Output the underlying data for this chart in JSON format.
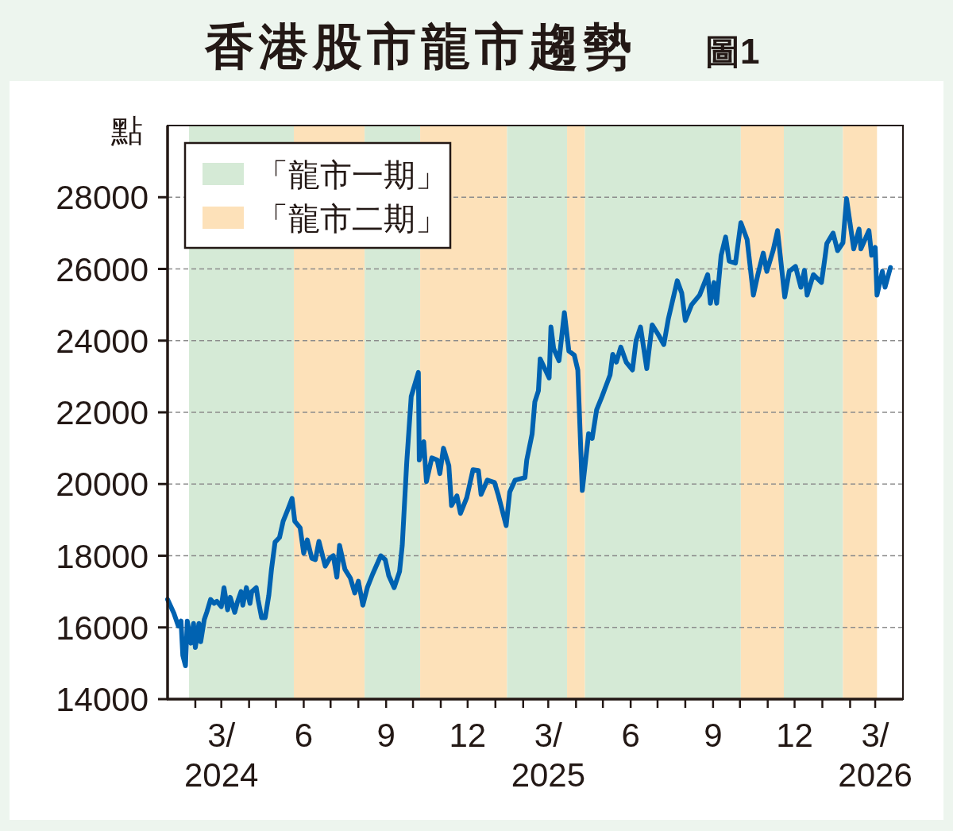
{
  "chart_data": {
    "type": "line",
    "title": "香港股市龍市趨勢",
    "subtitle": "圖1",
    "ylabel": "點",
    "xlim": [
      "2024-01-01",
      "2026-04-01"
    ],
    "ylim": [
      14000,
      30000
    ],
    "yticks": [
      14000,
      16000,
      18000,
      20000,
      22000,
      24000,
      26000,
      28000
    ],
    "xticks": [
      {
        "value": "2024-02-01",
        "label": null
      },
      {
        "value": "2024-03-01",
        "label": "3/\n2024"
      },
      {
        "value": "2024-04-01",
        "label": null
      },
      {
        "value": "2024-05-01",
        "label": null
      },
      {
        "value": "2024-06-01",
        "label": "6"
      },
      {
        "value": "2024-07-01",
        "label": null
      },
      {
        "value": "2024-08-01",
        "label": null
      },
      {
        "value": "2024-09-01",
        "label": "9"
      },
      {
        "value": "2024-10-01",
        "label": null
      },
      {
        "value": "2024-11-01",
        "label": null
      },
      {
        "value": "2024-12-01",
        "label": "12"
      },
      {
        "value": "2025-01-01",
        "label": null
      },
      {
        "value": "2025-02-01",
        "label": null
      },
      {
        "value": "2025-03-01",
        "label": "3/\n2025"
      },
      {
        "value": "2025-04-01",
        "label": null
      },
      {
        "value": "2025-05-01",
        "label": null
      },
      {
        "value": "2025-06-01",
        "label": "6"
      },
      {
        "value": "2025-07-01",
        "label": null
      },
      {
        "value": "2025-08-01",
        "label": null
      },
      {
        "value": "2025-09-01",
        "label": "9"
      },
      {
        "value": "2025-10-01",
        "label": null
      },
      {
        "value": "2025-11-01",
        "label": null
      },
      {
        "value": "2025-12-01",
        "label": "12"
      },
      {
        "value": "2026-01-01",
        "label": null
      },
      {
        "value": "2026-02-01",
        "label": null
      },
      {
        "value": "2026-03-01",
        "label": "3/\n2026"
      }
    ],
    "grid": "y",
    "legend": "top left",
    "bands": [
      {
        "axis": "x",
        "from": "2024-01-25",
        "to": "2024-05-21",
        "label": "「龍市一期」",
        "color": "#d5ead6"
      },
      {
        "axis": "x",
        "from": "2024-05-21",
        "to": "2024-08-08",
        "label": "「龍市二期」",
        "color": "#fde1b9"
      },
      {
        "axis": "x",
        "from": "2024-08-08",
        "to": "2024-10-09",
        "color": "#d5ead6"
      },
      {
        "axis": "x",
        "from": "2024-10-09",
        "to": "2025-01-14",
        "color": "#fde1b9"
      },
      {
        "axis": "x",
        "from": "2025-01-14",
        "to": "2025-03-22",
        "color": "#d5ead6"
      },
      {
        "axis": "x",
        "from": "2025-03-22",
        "to": "2025-04-11",
        "color": "#fde1b9"
      },
      {
        "axis": "x",
        "from": "2025-04-11",
        "to": "2025-10-02",
        "color": "#d5ead6"
      },
      {
        "axis": "x",
        "from": "2025-10-02",
        "to": "2025-11-19",
        "color": "#fde1b9"
      },
      {
        "axis": "x",
        "from": "2025-11-19",
        "to": "2026-01-24",
        "color": "#d5ead6"
      },
      {
        "axis": "x",
        "from": "2026-01-24",
        "to": "2026-03-03",
        "color": "#fde1b9"
      }
    ],
    "series": [
      {
        "color": "#0062b1",
        "x": [
          "2024-01-01",
          "2024-01-08",
          "2024-01-13",
          "2024-01-16",
          "2024-01-18",
          "2024-01-21",
          "2024-01-23",
          "2024-01-27",
          "2024-01-30",
          "2024-02-01",
          "2024-02-05",
          "2024-02-07",
          "2024-02-11",
          "2024-02-14",
          "2024-02-18",
          "2024-02-22",
          "2024-02-25",
          "2024-03-01",
          "2024-03-04",
          "2024-03-08",
          "2024-03-11",
          "2024-03-16",
          "2024-03-19",
          "2024-03-23",
          "2024-03-25",
          "2024-03-29",
          "2024-04-02",
          "2024-04-04",
          "2024-04-09",
          "2024-04-11",
          "2024-04-15",
          "2024-04-19",
          "2024-04-23",
          "2024-04-26",
          "2024-04-30",
          "2024-05-05",
          "2024-05-09",
          "2024-05-14",
          "2024-05-19",
          "2024-05-22",
          "2024-05-28",
          "2024-06-01",
          "2024-06-05",
          "2024-06-10",
          "2024-06-14",
          "2024-06-18",
          "2024-06-25",
          "2024-06-30",
          "2024-07-04",
          "2024-07-08",
          "2024-07-11",
          "2024-07-17",
          "2024-07-23",
          "2024-07-28",
          "2024-08-01",
          "2024-08-06",
          "2024-08-11",
          "2024-08-17",
          "2024-08-26",
          "2024-08-31",
          "2024-09-04",
          "2024-09-10",
          "2024-09-16",
          "2024-09-19",
          "2024-09-24",
          "2024-09-29",
          "2024-10-07",
          "2024-10-08",
          "2024-10-13",
          "2024-10-16",
          "2024-10-22",
          "2024-10-28",
          "2024-10-31",
          "2024-11-04",
          "2024-11-10",
          "2024-11-13",
          "2024-11-19",
          "2024-11-23",
          "2024-11-30",
          "2024-12-07",
          "2024-12-13",
          "2024-12-16",
          "2024-12-23",
          "2024-12-31",
          "2025-01-04",
          "2025-01-13",
          "2025-01-17",
          "2025-01-23",
          "2025-02-03",
          "2025-02-05",
          "2025-02-11",
          "2025-02-14",
          "2025-02-18",
          "2025-02-20",
          "2025-03-02",
          "2025-03-04",
          "2025-03-07",
          "2025-03-13",
          "2025-03-19",
          "2025-03-24",
          "2025-03-30",
          "2025-04-03",
          "2025-04-08",
          "2025-04-15",
          "2025-04-19",
          "2025-04-24",
          "2025-04-30",
          "2025-05-09",
          "2025-05-12",
          "2025-05-16",
          "2025-05-21",
          "2025-05-27",
          "2025-06-03",
          "2025-06-07",
          "2025-06-12",
          "2025-06-19",
          "2025-06-25",
          "2025-07-02",
          "2025-07-08",
          "2025-07-13",
          "2025-07-23",
          "2025-07-28",
          "2025-08-01",
          "2025-08-08",
          "2025-08-17",
          "2025-08-26",
          "2025-08-29",
          "2025-09-02",
          "2025-09-05",
          "2025-09-10",
          "2025-09-15",
          "2025-09-19",
          "2025-09-26",
          "2025-10-02",
          "2025-10-09",
          "2025-10-16",
          "2025-10-21",
          "2025-10-27",
          "2025-10-31",
          "2025-11-07",
          "2025-11-12",
          "2025-11-20",
          "2025-11-25",
          "2025-12-02",
          "2025-12-08",
          "2025-12-12",
          "2025-12-15",
          "2025-12-22",
          "2025-12-31",
          "2026-01-04",
          "2026-01-06",
          "2026-01-13",
          "2026-01-18",
          "2026-01-24",
          "2026-01-28",
          "2026-02-05",
          "2026-02-11",
          "2026-02-13",
          "2026-02-22",
          "2026-02-25",
          "2026-03-01",
          "2026-03-03",
          "2026-03-09",
          "2026-03-12",
          "2026-03-18"
        ],
        "values": [
          16780,
          16400,
          16040,
          16180,
          15220,
          14930,
          16180,
          15560,
          16110,
          15440,
          16110,
          15600,
          16220,
          16440,
          16780,
          16670,
          16730,
          16580,
          17110,
          16490,
          16840,
          16420,
          16710,
          17000,
          16620,
          17110,
          16670,
          17000,
          17110,
          16780,
          16270,
          16270,
          16890,
          17620,
          18380,
          18510,
          18960,
          19270,
          19600,
          18960,
          18780,
          18070,
          18440,
          17930,
          17890,
          18400,
          17710,
          17930,
          18000,
          17400,
          18290,
          17620,
          17380,
          16960,
          17290,
          16620,
          17110,
          17490,
          18000,
          17890,
          17440,
          17110,
          17560,
          18290,
          20600,
          22440,
          23110,
          20670,
          21180,
          20070,
          20730,
          20670,
          20290,
          21000,
          20510,
          19400,
          19670,
          19180,
          19620,
          20400,
          20380,
          19710,
          20110,
          20040,
          19710,
          18840,
          19780,
          20110,
          20180,
          20670,
          21400,
          22290,
          22600,
          23490,
          22960,
          24380,
          23780,
          23440,
          24780,
          23710,
          23600,
          23180,
          19820,
          21400,
          21270,
          22070,
          22440,
          23040,
          23620,
          23400,
          23820,
          23400,
          23180,
          24000,
          24380,
          23220,
          24440,
          24160,
          23890,
          24600,
          25670,
          25330,
          24560,
          25000,
          25270,
          25840,
          25040,
          25620,
          25040,
          26380,
          26890,
          26220,
          26160,
          27290,
          26820,
          25270,
          25840,
          26440,
          25930,
          26510,
          27070,
          25220,
          25930,
          26070,
          25490,
          25960,
          25270,
          25840,
          25620,
          26330,
          26710,
          27000,
          26510,
          26730,
          27960,
          26560,
          27110,
          26560,
          27070,
          26380,
          26600,
          25270,
          25930,
          25490,
          26040
        ]
      }
    ]
  }
}
